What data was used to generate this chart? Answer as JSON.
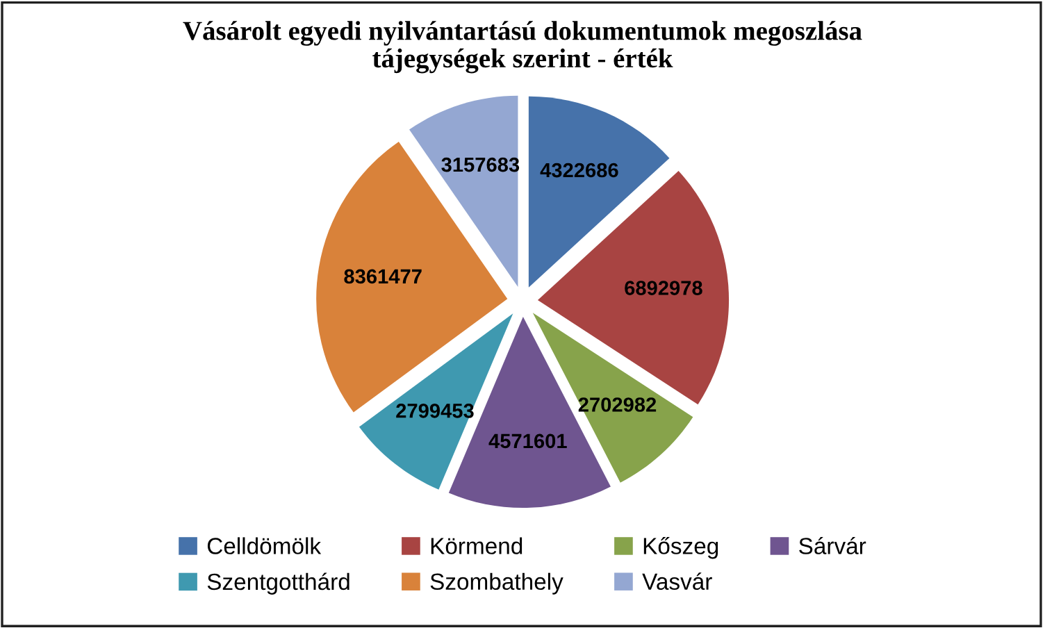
{
  "chart_data": {
    "type": "pie",
    "title": "Vásárolt egyedi nyilvántartású dokumentumok megoszlása\ntájegységek szerint - érték",
    "categories": [
      "Celldömölk",
      "Körmend",
      "Kőszeg",
      "Sárvár",
      "Szentgotthárd",
      "Szombathely",
      "Vasvár"
    ],
    "values": [
      4322686,
      6892978,
      2702982,
      4571601,
      2799453,
      8361477,
      3157683
    ],
    "colors": [
      "#4672aa",
      "#a84442",
      "#87a34b",
      "#6f5590",
      "#3f99b0",
      "#d9823a",
      "#94a7d2"
    ],
    "data_labels": true,
    "legend": "bottom"
  }
}
